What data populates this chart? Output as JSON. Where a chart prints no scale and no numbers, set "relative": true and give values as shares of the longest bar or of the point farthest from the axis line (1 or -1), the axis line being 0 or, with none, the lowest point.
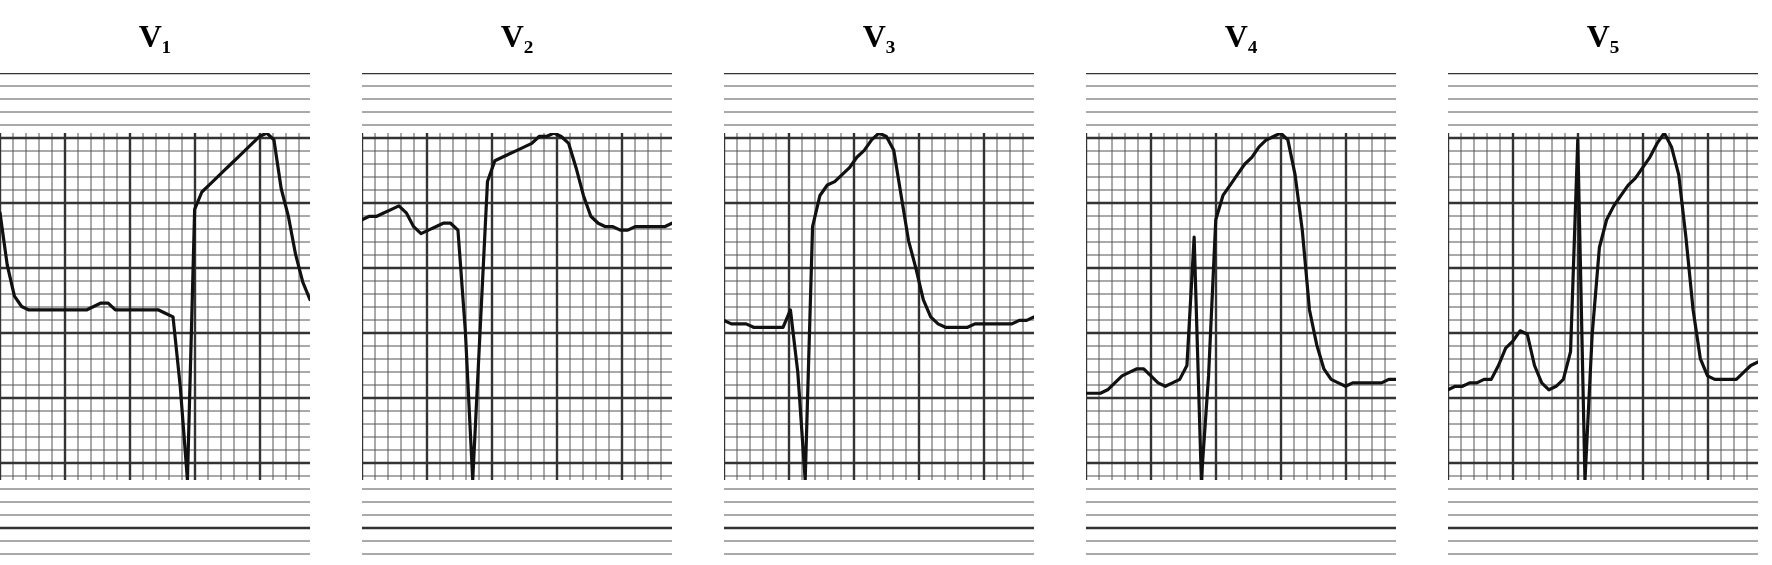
{
  "chart_data": [
    {
      "type": "line",
      "title": "V₁",
      "relative": true,
      "grid": true,
      "color": "#111111",
      "categories": [
        null,
        null,
        null,
        null,
        null,
        null,
        null,
        null,
        null,
        null,
        null,
        null,
        null,
        null,
        null,
        null,
        null,
        null,
        null,
        null,
        null,
        null,
        null,
        null,
        null,
        null,
        null,
        null,
        null,
        null,
        null,
        null,
        null,
        null,
        null,
        null,
        null,
        null,
        null,
        null,
        null,
        null,
        null,
        null
      ],
      "values": [
        0.77,
        0.62,
        0.53,
        0.5,
        0.49,
        0.49,
        0.49,
        0.49,
        0.49,
        0.49,
        0.49,
        0.49,
        0.49,
        0.5,
        0.51,
        0.51,
        0.49,
        0.49,
        0.49,
        0.49,
        0.49,
        0.49,
        0.49,
        0.48,
        0.47,
        0.27,
        0,
        0.78,
        0.83,
        0.85,
        0.87,
        0.89,
        0.91,
        0.93,
        0.95,
        0.97,
        0.99,
        1,
        0.98,
        0.84,
        0.76,
        0.65,
        0.57,
        0.52
      ]
    },
    {
      "type": "line",
      "title": "V₂",
      "relative": true,
      "grid": true,
      "color": "#111111",
      "categories": [
        null,
        null,
        null,
        null,
        null,
        null,
        null,
        null,
        null,
        null,
        null,
        null,
        null,
        null,
        null,
        null,
        null,
        null,
        null,
        null,
        null,
        null,
        null,
        null,
        null,
        null,
        null,
        null,
        null,
        null,
        null,
        null,
        null,
        null,
        null,
        null,
        null,
        null,
        null,
        null,
        null,
        null,
        null
      ],
      "values": [
        0.75,
        0.76,
        0.76,
        0.77,
        0.78,
        0.79,
        0.77,
        0.73,
        0.71,
        0.72,
        0.73,
        0.74,
        0.74,
        0.72,
        0.43,
        0,
        0.43,
        0.86,
        0.92,
        0.93,
        0.94,
        0.95,
        0.96,
        0.97,
        0.99,
        0.99,
        1,
        0.99,
        0.97,
        0.9,
        0.82,
        0.76,
        0.74,
        0.73,
        0.73,
        0.72,
        0.72,
        0.73,
        0.73,
        0.73,
        0.73,
        0.73,
        0.74
      ]
    },
    {
      "type": "line",
      "title": "V₃",
      "relative": true,
      "grid": true,
      "color": "#111111",
      "categories": [
        null,
        null,
        null,
        null,
        null,
        null,
        null,
        null,
        null,
        null,
        null,
        null,
        null,
        null,
        null,
        null,
        null,
        null,
        null,
        null,
        null,
        null,
        null,
        null,
        null,
        null,
        null,
        null,
        null,
        null,
        null,
        null,
        null,
        null,
        null,
        null,
        null,
        null,
        null,
        null,
        null,
        null,
        null
      ],
      "values": [
        0.46,
        0.45,
        0.45,
        0.45,
        0.44,
        0.44,
        0.44,
        0.44,
        0.44,
        0.49,
        0.31,
        0,
        0.73,
        0.82,
        0.85,
        0.86,
        0.88,
        0.9,
        0.93,
        0.95,
        0.98,
        1,
        0.99,
        0.95,
        0.82,
        0.69,
        0.61,
        0.52,
        0.47,
        0.45,
        0.44,
        0.44,
        0.44,
        0.44,
        0.45,
        0.45,
        0.45,
        0.45,
        0.45,
        0.45,
        0.46,
        0.46,
        0.47
      ]
    },
    {
      "type": "line",
      "title": "V₄",
      "relative": true,
      "grid": true,
      "color": "#111111",
      "categories": [
        null,
        null,
        null,
        null,
        null,
        null,
        null,
        null,
        null,
        null,
        null,
        null,
        null,
        null,
        null,
        null,
        null,
        null,
        null,
        null,
        null,
        null,
        null,
        null,
        null,
        null,
        null,
        null,
        null,
        null,
        null,
        null,
        null,
        null,
        null,
        null,
        null,
        null,
        null,
        null,
        null,
        null,
        null,
        null
      ],
      "values": [
        0.25,
        0.25,
        0.25,
        0.26,
        0.28,
        0.3,
        0.31,
        0.32,
        0.32,
        0.3,
        0.28,
        0.27,
        0.28,
        0.29,
        0.33,
        0.7,
        0,
        0.3,
        0.75,
        0.82,
        0.85,
        0.88,
        0.91,
        0.93,
        0.96,
        0.98,
        0.99,
        1,
        0.98,
        0.88,
        0.72,
        0.49,
        0.39,
        0.32,
        0.29,
        0.28,
        0.27,
        0.28,
        0.28,
        0.28,
        0.28,
        0.28,
        0.29,
        0.29
      ]
    },
    {
      "type": "line",
      "title": "V₅",
      "relative": true,
      "grid": true,
      "color": "#111111",
      "categories": [
        null,
        null,
        null,
        null,
        null,
        null,
        null,
        null,
        null,
        null,
        null,
        null,
        null,
        null,
        null,
        null,
        null,
        null,
        null,
        null,
        null,
        null,
        null,
        null,
        null,
        null,
        null,
        null,
        null,
        null,
        null,
        null,
        null,
        null,
        null,
        null,
        null,
        null,
        null,
        null,
        null,
        null,
        null,
        null
      ],
      "values": [
        0.26,
        0.27,
        0.27,
        0.28,
        0.28,
        0.29,
        0.29,
        0.33,
        0.38,
        0.4,
        0.43,
        0.42,
        0.33,
        0.28,
        0.26,
        0.27,
        0.29,
        0.37,
        0.98,
        0,
        0.42,
        0.67,
        0.75,
        0.79,
        0.82,
        0.85,
        0.87,
        0.9,
        0.93,
        0.97,
        1,
        0.96,
        0.88,
        0.7,
        0.49,
        0.35,
        0.3,
        0.29,
        0.29,
        0.29,
        0.29,
        0.31,
        0.33,
        0.34
      ]
    }
  ]
}
